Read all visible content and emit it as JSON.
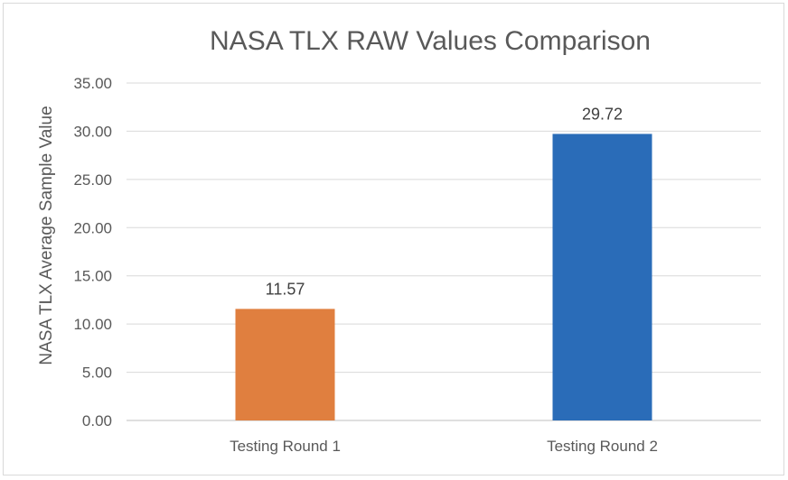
{
  "chart_data": {
    "type": "bar",
    "title": "NASA TLX RAW Values Comparison",
    "xlabel": "",
    "ylabel": "NASA TLX Average Sample Value",
    "categories": [
      "Testing Round 1",
      "Testing Round 2"
    ],
    "values": [
      11.57,
      29.72
    ],
    "data_labels": [
      "11.57",
      "29.72"
    ],
    "bar_colors": [
      "#e07f3f",
      "#2a6cb8"
    ],
    "ylim": [
      0,
      35
    ],
    "y_ticks": [
      "0.00",
      "5.00",
      "10.00",
      "15.00",
      "20.00",
      "25.00",
      "30.00",
      "35.00"
    ],
    "grid": true,
    "legend": "none"
  }
}
